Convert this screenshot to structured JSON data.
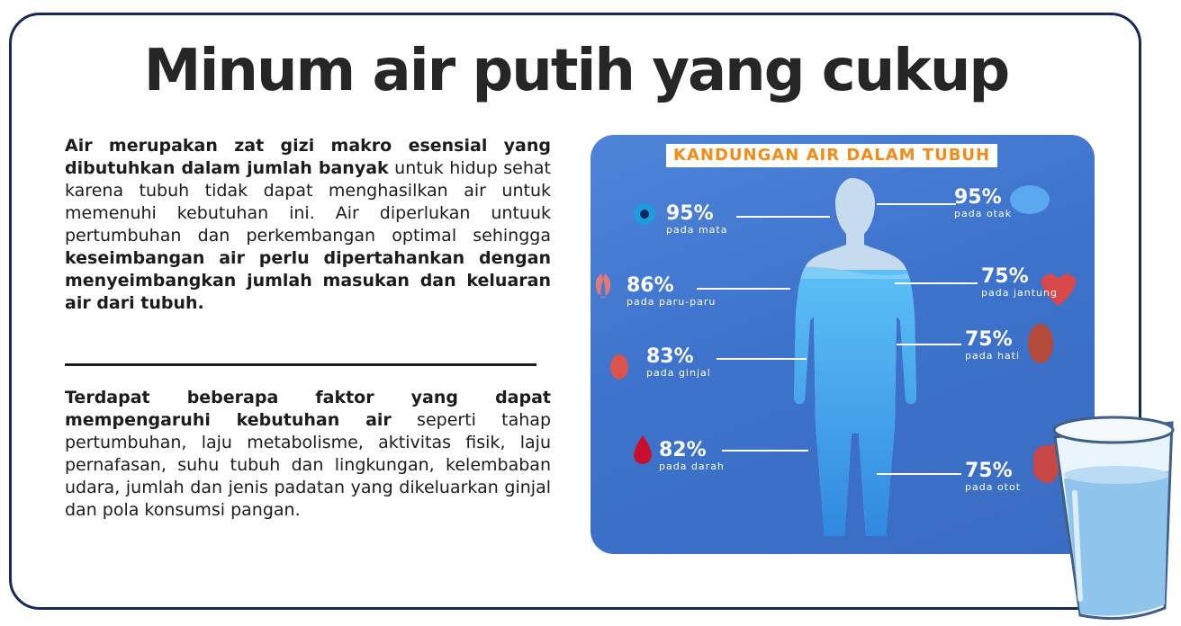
{
  "title": "Minum air putih yang cukup",
  "paragraph1": {
    "bold1": "Air merupakan zat gizi makro esensial yang dibutuhkan dalam jumlah banyak",
    "text1": " untuk hidup sehat karena tubuh tidak dapat menghasilkan air untuk memenuhi kebutuhan ini. Air diperlukan untuuk pertumbuhan dan perkembangan optimal sehingga ",
    "bold2": "keseimbangan air perlu dipertahankan dengan menyeimbangkan jumlah masukan dan keluaran air dari tubuh."
  },
  "paragraph2": {
    "bold1": "Terdapat beberapa faktor yang dapat mempengaruhi kebutuhan air",
    "text1": " seperti tahap pertumbuhan, laju metabolisme, aktivitas fisik, laju pernafasan, suhu tubuh dan lingkungan, kelembaban udara, jumlah dan jenis padatan yang dikeluarkan ginjal dan pola konsumsi pangan."
  },
  "infographic": {
    "title": "KANDUNGAN AIR DALAM TUBUH",
    "colors": {
      "background": "#4079d0",
      "title_text": "#f28c16",
      "water": "#5ab2f2",
      "body": "#c8ddf0"
    },
    "left": [
      {
        "value": "95%",
        "label": "pada mata",
        "icon": "eye-icon"
      },
      {
        "value": "86%",
        "label": "pada paru-paru",
        "icon": "lungs-icon"
      },
      {
        "value": "83%",
        "label": "pada ginjal",
        "icon": "kidney-icon"
      },
      {
        "value": "82%",
        "label": "pada darah",
        "icon": "blood-drop-icon"
      }
    ],
    "right": [
      {
        "value": "95%",
        "label": "pada otak",
        "icon": "brain-icon"
      },
      {
        "value": "75%",
        "label": "pada jantung",
        "icon": "heart-icon"
      },
      {
        "value": "75%",
        "label": "pada hati",
        "icon": "liver-icon"
      },
      {
        "value": "75%",
        "label": "pada otot",
        "icon": "muscle-icon"
      }
    ]
  }
}
